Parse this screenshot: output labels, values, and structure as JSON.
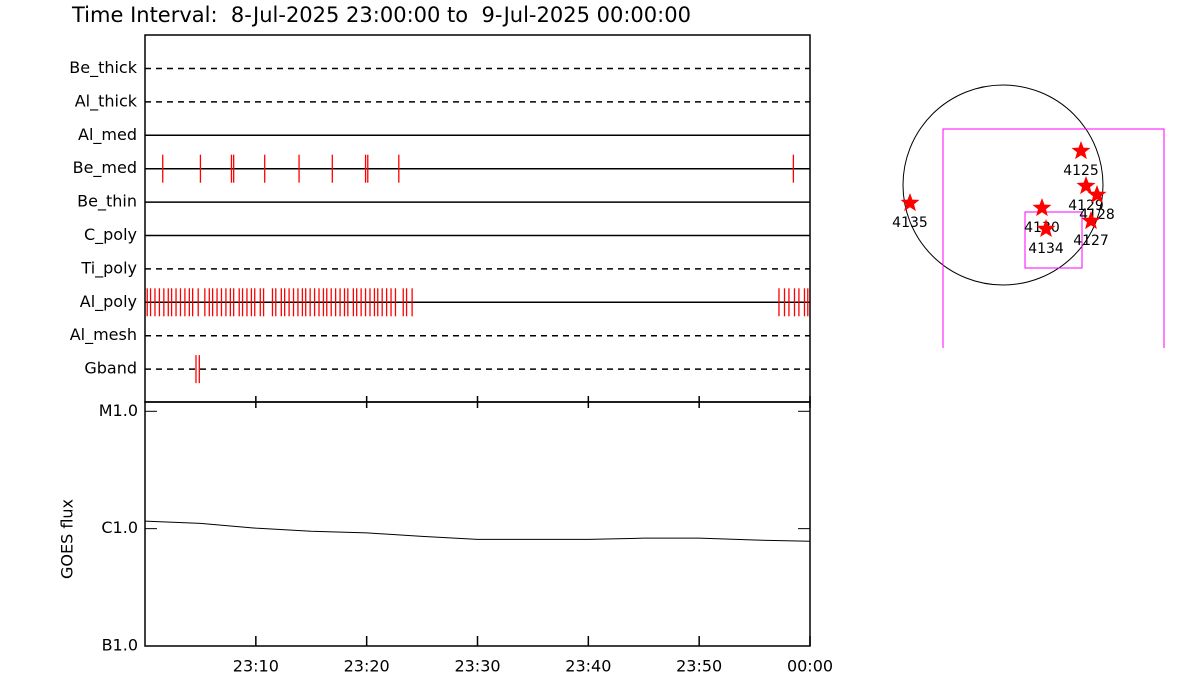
{
  "chart_data": [
    {
      "type": "timeline",
      "title": "Time Interval:  8-Jul-2025 23:00:00 to  9-Jul-2025 00:00:00",
      "color": "#ff0000",
      "xlim": [
        0,
        60
      ],
      "series": [
        {
          "name": "Be_thick",
          "dashed": true,
          "values": []
        },
        {
          "name": "Al_thick",
          "dashed": true,
          "values": []
        },
        {
          "name": "Al_med",
          "dashed": false,
          "values": []
        },
        {
          "name": "Be_med",
          "dashed": false,
          "values": [
            1.6,
            5.0,
            7.8,
            8.0,
            10.8,
            13.9,
            16.9,
            19.9,
            20.1,
            22.9,
            58.5
          ]
        },
        {
          "name": "Be_thin",
          "dashed": false,
          "values": []
        },
        {
          "name": "C_poly",
          "dashed": false,
          "values": []
        },
        {
          "name": "Ti_poly",
          "dashed": true,
          "values": []
        },
        {
          "name": "Al_poly",
          "dashed": false,
          "values": [
            0.2,
            0.5,
            0.9,
            1.3,
            1.7,
            2.1,
            2.4,
            2.8,
            3.2,
            3.6,
            4.0,
            4.3,
            4.8,
            5.4,
            5.8,
            6.1,
            6.5,
            6.9,
            7.3,
            7.7,
            8.0,
            8.5,
            8.8,
            9.2,
            9.6,
            9.9,
            10.4,
            10.7,
            11.5,
            11.8,
            12.3,
            12.6,
            13.0,
            13.4,
            13.8,
            14.2,
            14.5,
            14.9,
            15.3,
            15.7,
            16.1,
            16.4,
            16.8,
            17.2,
            17.6,
            18.0,
            18.3,
            18.8,
            19.1,
            19.5,
            19.9,
            20.3,
            20.7,
            21.0,
            21.4,
            21.8,
            22.2,
            22.6,
            23.3,
            23.6,
            24.1,
            57.2,
            57.7,
            58.1,
            58.6,
            59.0,
            59.5,
            59.8
          ]
        },
        {
          "name": "Al_mesh",
          "dashed": true,
          "values": []
        },
        {
          "name": "Gband",
          "dashed": true,
          "values": [
            4.6,
            4.9
          ]
        }
      ]
    },
    {
      "type": "line",
      "ylabel": "GOES flux",
      "color": "#000000",
      "log": true,
      "xlim": [
        0,
        60
      ],
      "xticks": [
        {
          "value": 10,
          "label": "23:10"
        },
        {
          "value": 20,
          "label": "23:20"
        },
        {
          "value": 30,
          "label": "23:30"
        },
        {
          "value": 40,
          "label": "23:40"
        },
        {
          "value": 50,
          "label": "23:50"
        },
        {
          "value": 60,
          "label": "00:00"
        }
      ],
      "ylim": [
        1e-07,
        1.2e-05
      ],
      "yticks": [
        {
          "value": 1e-05,
          "label": "M1.0"
        },
        {
          "value": 1e-06,
          "label": "C1.0"
        },
        {
          "value": 1e-07,
          "label": "B1.0"
        }
      ],
      "x": [
        0,
        5,
        10,
        15,
        20,
        25,
        30,
        35,
        40,
        45,
        50,
        55,
        60
      ],
      "values": [
        1.16e-06,
        1.11e-06,
        1.01e-06,
        9.5e-07,
        9.2e-07,
        8.6e-07,
        8.1e-07,
        8.1e-07,
        8.1e-07,
        8.3e-07,
        8.3e-07,
        8e-07,
        7.8e-07
      ]
    },
    {
      "type": "scatter",
      "color": "#ff0000",
      "labels": [
        "4125",
        "4129",
        "4128",
        "4130",
        "4134",
        "4127",
        "4135"
      ],
      "x": [
        749,
        797,
        902,
        374,
        413,
        845,
        -893
      ],
      "values": [
        326,
        -10,
        -96,
        -221,
        -422,
        -346,
        -173
      ]
    }
  ]
}
